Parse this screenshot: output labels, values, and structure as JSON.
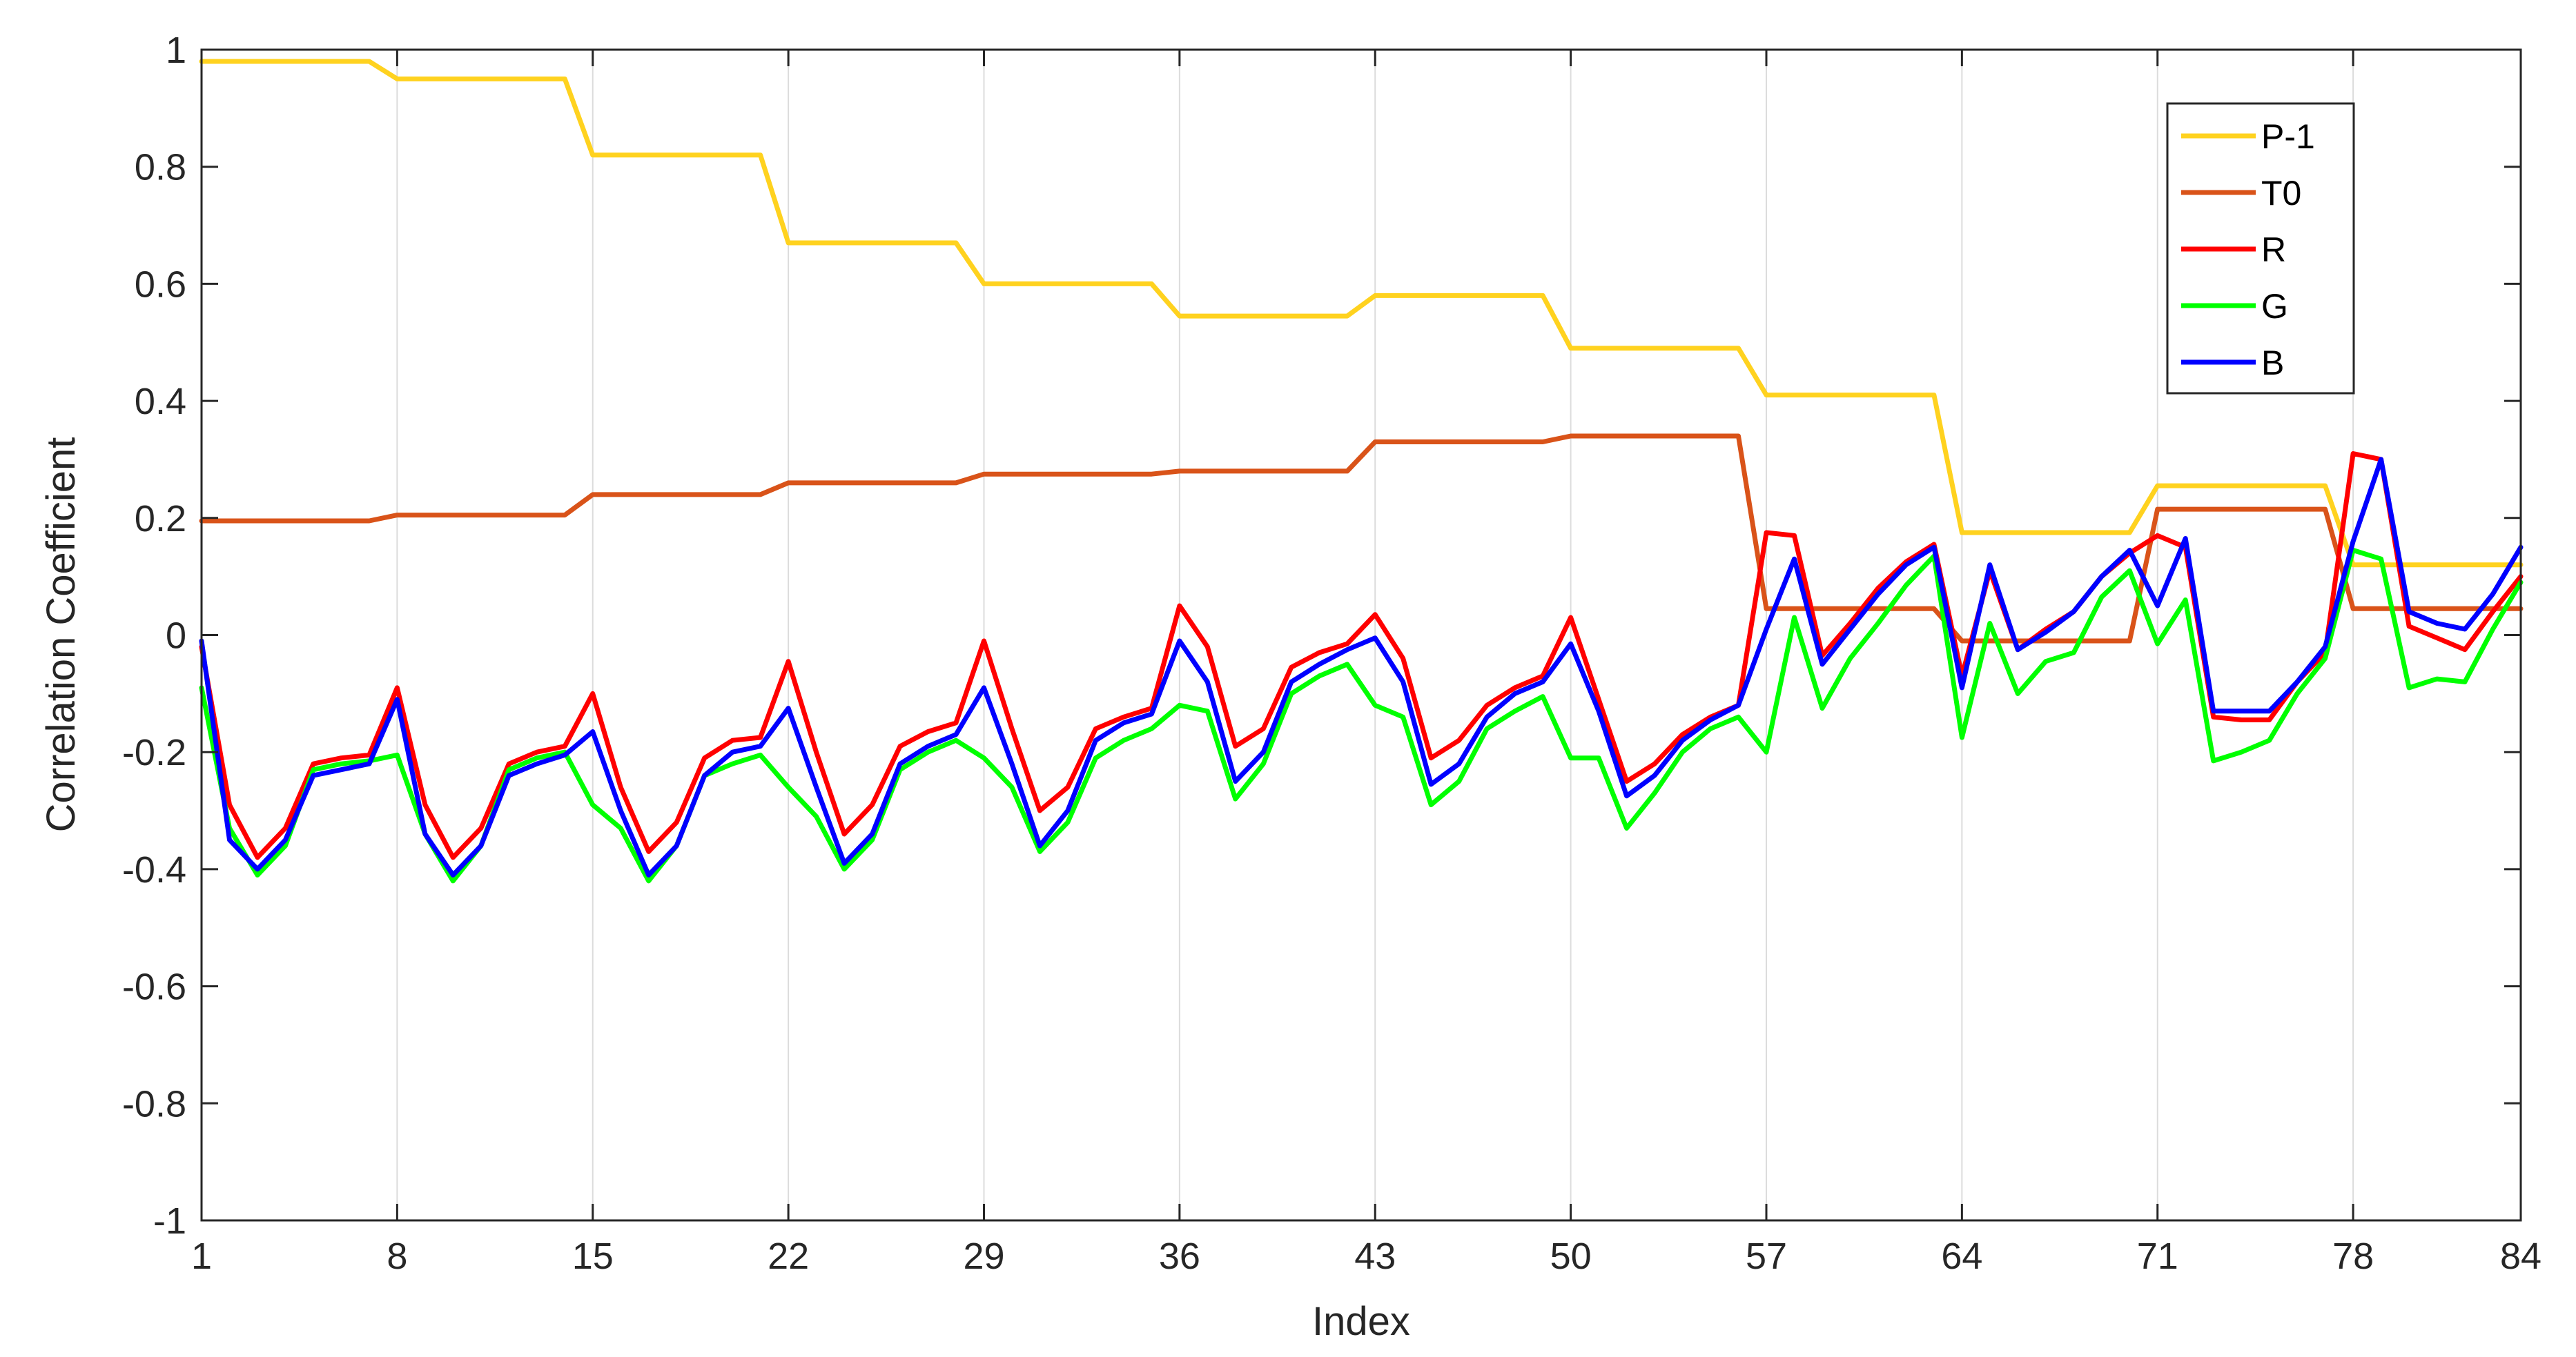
{
  "chart_data": {
    "type": "line",
    "xlabel": "Index",
    "ylabel": "Correlation Coefficient",
    "xlim": [
      1,
      84
    ],
    "ylim": [
      -1,
      1
    ],
    "x_ticks": [
      1,
      8,
      15,
      22,
      29,
      36,
      43,
      50,
      57,
      64,
      71,
      78,
      84
    ],
    "y_ticks": [
      -1,
      -0.8,
      -0.6,
      -0.4,
      -0.2,
      0,
      0.2,
      0.4,
      0.6,
      0.8,
      1
    ],
    "y_tick_labels": [
      "-1",
      "-0.8",
      "-0.6",
      "-0.4",
      "-0.2",
      "0",
      "0.2",
      "0.4",
      "0.6",
      "0.8",
      "1"
    ],
    "grid": "vertical-only",
    "legend": "top-right",
    "series": [
      {
        "name": "P-1",
        "color": "#FFD21F",
        "values": [
          0.98,
          0.98,
          0.98,
          0.98,
          0.98,
          0.98,
          0.98,
          0.95,
          0.95,
          0.95,
          0.95,
          0.95,
          0.95,
          0.95,
          0.82,
          0.82,
          0.82,
          0.82,
          0.82,
          0.82,
          0.82,
          0.67,
          0.67,
          0.67,
          0.67,
          0.67,
          0.67,
          0.67,
          0.6,
          0.6,
          0.6,
          0.6,
          0.6,
          0.6,
          0.6,
          0.545,
          0.545,
          0.545,
          0.545,
          0.545,
          0.545,
          0.545,
          0.58,
          0.58,
          0.58,
          0.58,
          0.58,
          0.58,
          0.58,
          0.49,
          0.49,
          0.49,
          0.49,
          0.49,
          0.49,
          0.49,
          0.41,
          0.41,
          0.41,
          0.41,
          0.41,
          0.41,
          0.41,
          0.175,
          0.175,
          0.175,
          0.175,
          0.175,
          0.175,
          0.175,
          0.255,
          0.255,
          0.255,
          0.255,
          0.255,
          0.255,
          0.255,
          0.12,
          0.12,
          0.12,
          0.12,
          0.12,
          0.12,
          0.12
        ]
      },
      {
        "name": "T0",
        "color": "#D95319",
        "values": [
          0.195,
          0.195,
          0.195,
          0.195,
          0.195,
          0.195,
          0.195,
          0.205,
          0.205,
          0.205,
          0.205,
          0.205,
          0.205,
          0.205,
          0.24,
          0.24,
          0.24,
          0.24,
          0.24,
          0.24,
          0.24,
          0.26,
          0.26,
          0.26,
          0.26,
          0.26,
          0.26,
          0.26,
          0.275,
          0.275,
          0.275,
          0.275,
          0.275,
          0.275,
          0.275,
          0.28,
          0.28,
          0.28,
          0.28,
          0.28,
          0.28,
          0.28,
          0.33,
          0.33,
          0.33,
          0.33,
          0.33,
          0.33,
          0.33,
          0.34,
          0.34,
          0.34,
          0.34,
          0.34,
          0.34,
          0.34,
          0.045,
          0.045,
          0.045,
          0.045,
          0.045,
          0.045,
          0.045,
          -0.01,
          -0.01,
          -0.01,
          -0.01,
          -0.01,
          -0.01,
          -0.01,
          0.215,
          0.215,
          0.215,
          0.215,
          0.215,
          0.215,
          0.215,
          0.045,
          0.045,
          0.045,
          0.045,
          0.045,
          0.045,
          0.045
        ]
      },
      {
        "name": "R",
        "color": "#FF0000",
        "values": [
          -0.02,
          -0.29,
          -0.38,
          -0.33,
          -0.22,
          -0.21,
          -0.205,
          -0.09,
          -0.29,
          -0.38,
          -0.33,
          -0.22,
          -0.2,
          -0.19,
          -0.1,
          -0.26,
          -0.37,
          -0.32,
          -0.21,
          -0.18,
          -0.175,
          -0.045,
          -0.2,
          -0.34,
          -0.29,
          -0.19,
          -0.165,
          -0.15,
          -0.01,
          -0.16,
          -0.3,
          -0.26,
          -0.16,
          -0.14,
          -0.125,
          0.05,
          -0.02,
          -0.19,
          -0.16,
          -0.055,
          -0.03,
          -0.015,
          0.035,
          -0.04,
          -0.21,
          -0.18,
          -0.12,
          -0.09,
          -0.07,
          0.03,
          -0.11,
          -0.25,
          -0.22,
          -0.17,
          -0.14,
          -0.12,
          0.175,
          0.17,
          -0.035,
          0.02,
          0.08,
          0.125,
          0.155,
          -0.07,
          0.11,
          -0.025,
          0.01,
          0.04,
          0.1,
          0.14,
          0.17,
          0.15,
          -0.14,
          -0.145,
          -0.145,
          -0.08,
          -0.03,
          0.31,
          0.3,
          0.015,
          -0.005,
          -0.025,
          0.04,
          0.1
        ]
      },
      {
        "name": "G",
        "color": "#00FF00",
        "values": [
          -0.09,
          -0.33,
          -0.41,
          -0.36,
          -0.23,
          -0.22,
          -0.215,
          -0.205,
          -0.34,
          -0.42,
          -0.36,
          -0.23,
          -0.21,
          -0.2,
          -0.29,
          -0.33,
          -0.42,
          -0.36,
          -0.24,
          -0.22,
          -0.205,
          -0.26,
          -0.31,
          -0.4,
          -0.35,
          -0.23,
          -0.2,
          -0.18,
          -0.21,
          -0.26,
          -0.37,
          -0.32,
          -0.21,
          -0.18,
          -0.16,
          -0.12,
          -0.13,
          -0.28,
          -0.22,
          -0.1,
          -0.07,
          -0.05,
          -0.12,
          -0.14,
          -0.29,
          -0.25,
          -0.16,
          -0.13,
          -0.105,
          -0.21,
          -0.21,
          -0.33,
          -0.27,
          -0.2,
          -0.16,
          -0.14,
          -0.2,
          0.03,
          -0.125,
          -0.04,
          0.02,
          0.085,
          0.135,
          -0.175,
          0.02,
          -0.1,
          -0.045,
          -0.03,
          0.065,
          0.11,
          -0.015,
          0.06,
          -0.215,
          -0.2,
          -0.18,
          -0.1,
          -0.04,
          0.145,
          0.13,
          -0.09,
          -0.075,
          -0.08,
          0.01,
          0.09
        ]
      },
      {
        "name": "B",
        "color": "#0000FF",
        "values": [
          -0.01,
          -0.35,
          -0.4,
          -0.35,
          -0.24,
          -0.23,
          -0.22,
          -0.11,
          -0.34,
          -0.41,
          -0.36,
          -0.24,
          -0.22,
          -0.205,
          -0.165,
          -0.3,
          -0.41,
          -0.36,
          -0.24,
          -0.2,
          -0.19,
          -0.125,
          -0.26,
          -0.39,
          -0.34,
          -0.22,
          -0.19,
          -0.17,
          -0.09,
          -0.22,
          -0.36,
          -0.3,
          -0.18,
          -0.15,
          -0.135,
          -0.01,
          -0.08,
          -0.25,
          -0.2,
          -0.08,
          -0.05,
          -0.025,
          -0.005,
          -0.08,
          -0.255,
          -0.22,
          -0.14,
          -0.1,
          -0.08,
          -0.015,
          -0.13,
          -0.275,
          -0.24,
          -0.18,
          -0.145,
          -0.12,
          0.01,
          0.13,
          -0.05,
          0.01,
          0.07,
          0.12,
          0.15,
          -0.09,
          0.12,
          -0.025,
          0.005,
          0.04,
          0.1,
          0.145,
          0.05,
          0.165,
          -0.13,
          -0.13,
          -0.13,
          -0.08,
          -0.02,
          0.16,
          0.3,
          0.04,
          0.02,
          0.01,
          0.07,
          0.15
        ]
      }
    ]
  }
}
